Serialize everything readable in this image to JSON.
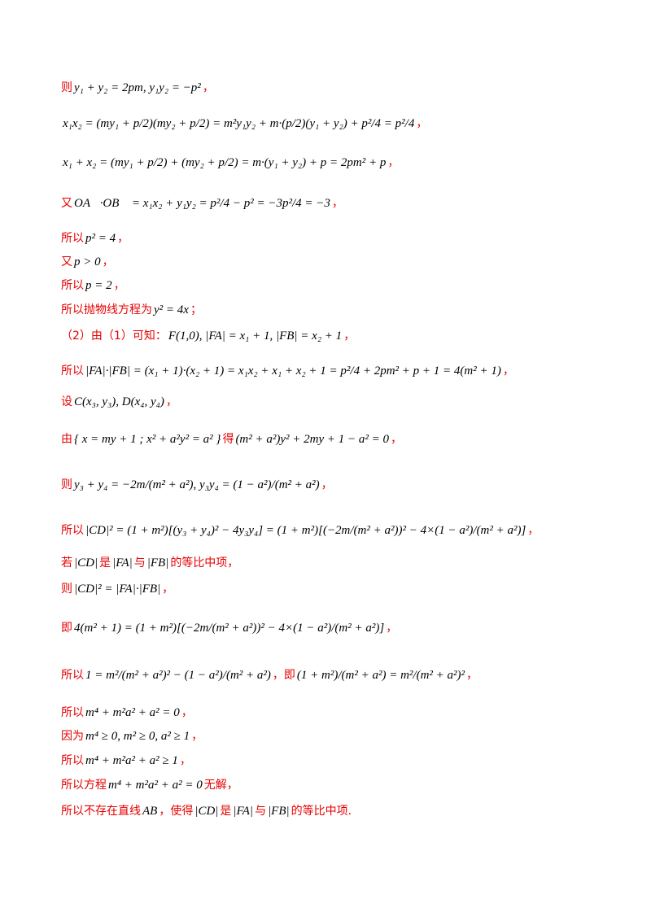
{
  "lines": [
    [
      {
        "text": "则",
        "color": "#e60000"
      },
      {
        "text": "y₁ + y₂ = 2pm, y₁y₂ = −p²",
        "color": "#000000"
      },
      {
        "text": "，",
        "color": "#e60000"
      }
    ],
    [
      {
        "text": "x₁x₂ = (my₁ + p/2)(my₂ + p/2) = m²y₁y₂ + m·(p/2)(y₁ + y₂) + p²/4 = p²/4",
        "color": "#000000"
      },
      {
        "text": "，",
        "color": "#e60000"
      }
    ],
    [
      {
        "text": "x₁ + x₂ = (my₁ + p/2) + (my₂ + p/2) = m·(y₁ + y₂) + p = 2pm² + p",
        "color": "#000000"
      },
      {
        "text": "，",
        "color": "#e60000"
      }
    ],
    [
      {
        "text": "又",
        "color": "#e60000"
      },
      {
        "text": "OA⃗·OB⃗ = x₁x₂ + y₁y₂ = p²/4 − p² = −3p²/4 = −3",
        "color": "#000000"
      },
      {
        "text": "，",
        "color": "#e60000"
      }
    ],
    [
      {
        "text": "所以",
        "color": "#e60000"
      },
      {
        "text": "p² = 4",
        "color": "#000000"
      },
      {
        "text": "，",
        "color": "#e60000"
      }
    ],
    [
      {
        "text": "又",
        "color": "#e60000"
      },
      {
        "text": "p > 0",
        "color": "#000000"
      },
      {
        "text": "，",
        "color": "#e60000"
      }
    ],
    [
      {
        "text": "所以",
        "color": "#e60000"
      },
      {
        "text": "p = 2",
        "color": "#000000"
      },
      {
        "text": "，",
        "color": "#e60000"
      }
    ],
    [
      {
        "text": "所以抛物线方程为",
        "color": "#e60000"
      },
      {
        "text": "y² = 4x",
        "color": "#000000"
      },
      {
        "text": "；",
        "color": "#e60000"
      }
    ],
    [
      {
        "text": "（2）由（1）可知：",
        "color": "#e60000"
      },
      {
        "text": "F(1,0), |FA| = x₁ + 1, |FB| = x₂ + 1",
        "color": "#000000"
      },
      {
        "text": "，",
        "color": "#e60000"
      }
    ],
    [
      {
        "text": "所以",
        "color": "#e60000"
      },
      {
        "text": "|FA|·|FB| = (x₁ + 1)·(x₂ + 1) = x₁x₂ + x₁ + x₂ + 1 = p²/4 + 2pm² + p + 1 = 4(m² + 1)",
        "color": "#000000"
      },
      {
        "text": "，",
        "color": "#e60000"
      }
    ],
    [
      {
        "text": "设",
        "color": "#e60000"
      },
      {
        "text": "C(x₃, y₃), D(x₄, y₄)",
        "color": "#000000"
      },
      {
        "text": "，",
        "color": "#e60000"
      }
    ],
    [
      {
        "text": "由",
        "color": "#e60000"
      },
      {
        "text": "{ x = my + 1 ; x² + a²y² = a² }",
        "color": "#000000"
      },
      {
        "text": "得",
        "color": "#e60000"
      },
      {
        "text": "(m² + a²)y² + 2my + 1 − a² = 0",
        "color": "#000000"
      },
      {
        "text": "，",
        "color": "#e60000"
      }
    ],
    [
      {
        "text": "则",
        "color": "#e60000"
      },
      {
        "text": "y₃ + y₄ = −2m/(m² + a²), y₃y₄ = (1 − a²)/(m² + a²)",
        "color": "#000000"
      },
      {
        "text": "，",
        "color": "#e60000"
      }
    ],
    [
      {
        "text": "所以",
        "color": "#e60000"
      },
      {
        "text": "|CD|² = (1 + m²)[(y₃ + y₄)² − 4y₃y₄] = (1 + m²)[(−2m/(m² + a²))² − 4×(1 − a²)/(m² + a²)]",
        "color": "#000000"
      },
      {
        "text": "，",
        "color": "#e60000"
      }
    ],
    [
      {
        "text": "若",
        "color": "#e60000"
      },
      {
        "text": "|CD|",
        "color": "#000000"
      },
      {
        "text": "是",
        "color": "#e60000"
      },
      {
        "text": "|FA|",
        "color": "#000000"
      },
      {
        "text": "与",
        "color": "#e60000"
      },
      {
        "text": "|FB|",
        "color": "#000000"
      },
      {
        "text": "的等比中项，",
        "color": "#e60000"
      }
    ],
    [
      {
        "text": "则",
        "color": "#e60000"
      },
      {
        "text": "|CD|² = |FA|·|FB|",
        "color": "#000000"
      },
      {
        "text": "，",
        "color": "#e60000"
      }
    ],
    [
      {
        "text": "即",
        "color": "#e60000"
      },
      {
        "text": "4(m² + 1) = (1 + m²)[(−2m/(m² + a²))² − 4×(1 − a²)/(m² + a²)]",
        "color": "#000000"
      },
      {
        "text": "，",
        "color": "#e60000"
      }
    ],
    [
      {
        "text": "所以",
        "color": "#e60000"
      },
      {
        "text": "1 = m²/(m² + a²)² − (1 − a²)/(m² + a²)",
        "color": "#000000"
      },
      {
        "text": "，即",
        "color": "#e60000"
      },
      {
        "text": "(1 + m²)/(m² + a²) = m²/(m² + a²)²",
        "color": "#000000"
      },
      {
        "text": "，",
        "color": "#e60000"
      }
    ],
    [
      {
        "text": "所以",
        "color": "#e60000"
      },
      {
        "text": "m⁴ + m²a² + a² = 0",
        "color": "#000000"
      },
      {
        "text": "，",
        "color": "#e60000"
      }
    ],
    [
      {
        "text": "因为",
        "color": "#e60000"
      },
      {
        "text": "m⁴ ≥ 0, m² ≥ 0, a² ≥ 1",
        "color": "#000000"
      },
      {
        "text": "，",
        "color": "#e60000"
      }
    ],
    [
      {
        "text": "所以",
        "color": "#e60000"
      },
      {
        "text": "m⁴ + m²a² + a² ≥ 1",
        "color": "#000000"
      },
      {
        "text": "，",
        "color": "#e60000"
      }
    ],
    [
      {
        "text": "所以方程",
        "color": "#e60000"
      },
      {
        "text": "m⁴ + m²a² + a² = 0",
        "color": "#000000"
      },
      {
        "text": "无解，",
        "color": "#e60000"
      }
    ],
    [
      {
        "text": "所以不存在直线",
        "color": "#e60000"
      },
      {
        "text": "AB",
        "color": "#000000"
      },
      {
        "text": "，使得",
        "color": "#e60000"
      },
      {
        "text": "|CD|",
        "color": "#000000"
      },
      {
        "text": "是",
        "color": "#e60000"
      },
      {
        "text": "|FA|",
        "color": "#000000"
      },
      {
        "text": "与",
        "color": "#e60000"
      },
      {
        "text": "|FB|",
        "color": "#000000"
      },
      {
        "text": "的等比中项.",
        "color": "#e60000"
      }
    ]
  ]
}
